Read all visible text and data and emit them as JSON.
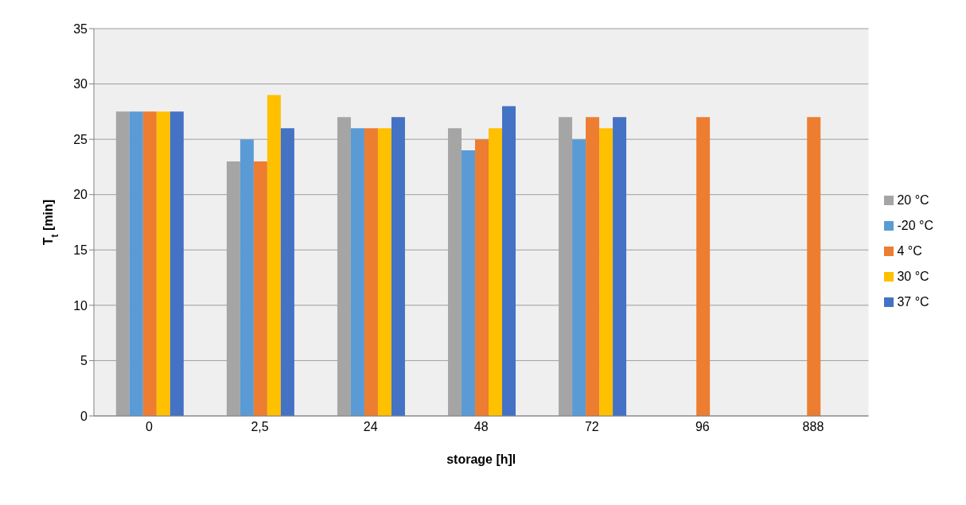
{
  "chart_data": {
    "type": "bar",
    "xlabel": "storage [h]l",
    "ylabel": "T$_{t}$ [min]",
    "categories": [
      "0",
      "2,5",
      "24",
      "48",
      "72",
      "96",
      "888"
    ],
    "series": [
      {
        "name": "20 °C",
        "color": "#a5a5a5",
        "values": [
          27.5,
          23,
          27,
          26,
          27,
          null,
          null
        ]
      },
      {
        "name": "-20 °C",
        "color": "#5b9bd5",
        "values": [
          27.5,
          25,
          26,
          24,
          25,
          null,
          null
        ]
      },
      {
        "name": "4 °C",
        "color": "#ed7d31",
        "values": [
          27.5,
          23,
          26,
          25,
          27,
          27,
          27
        ]
      },
      {
        "name": "30 °C",
        "color": "#ffc000",
        "values": [
          27.5,
          29,
          26,
          26,
          26,
          null,
          null
        ]
      },
      {
        "name": "37 °C",
        "color": "#4472c4",
        "values": [
          27.5,
          26,
          27,
          28,
          27,
          null,
          null
        ]
      }
    ],
    "ylim": [
      0,
      35
    ],
    "yticks": [
      0,
      5,
      10,
      15,
      20,
      25,
      30,
      35
    ],
    "grid": "y",
    "legend": "right"
  }
}
